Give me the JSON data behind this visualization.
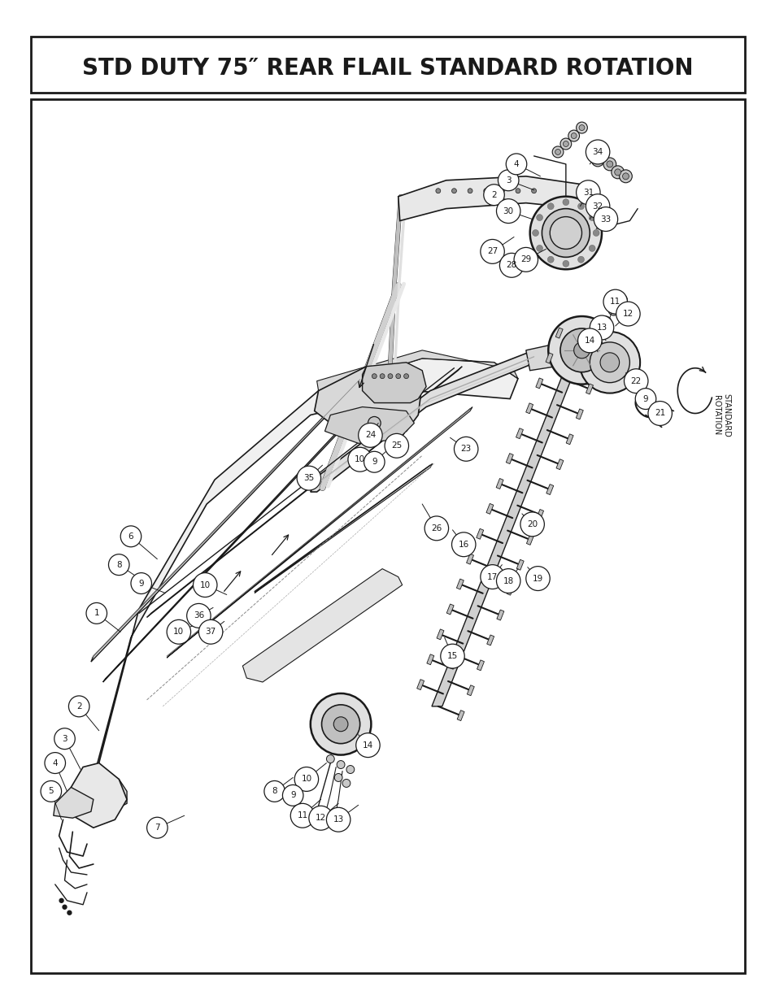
{
  "title": "STD DUTY 75″ REAR FLAIL STANDARD ROTATION",
  "title_fontsize": 20,
  "title_fontweight": "bold",
  "bg_color": "#ffffff",
  "border_color": "#1a1a1a",
  "text_color": "#1a1a1a",
  "page_width": 9.54,
  "page_height": 12.35,
  "dpi": 100,
  "rotation_label": "STANDARD\nROTATION"
}
